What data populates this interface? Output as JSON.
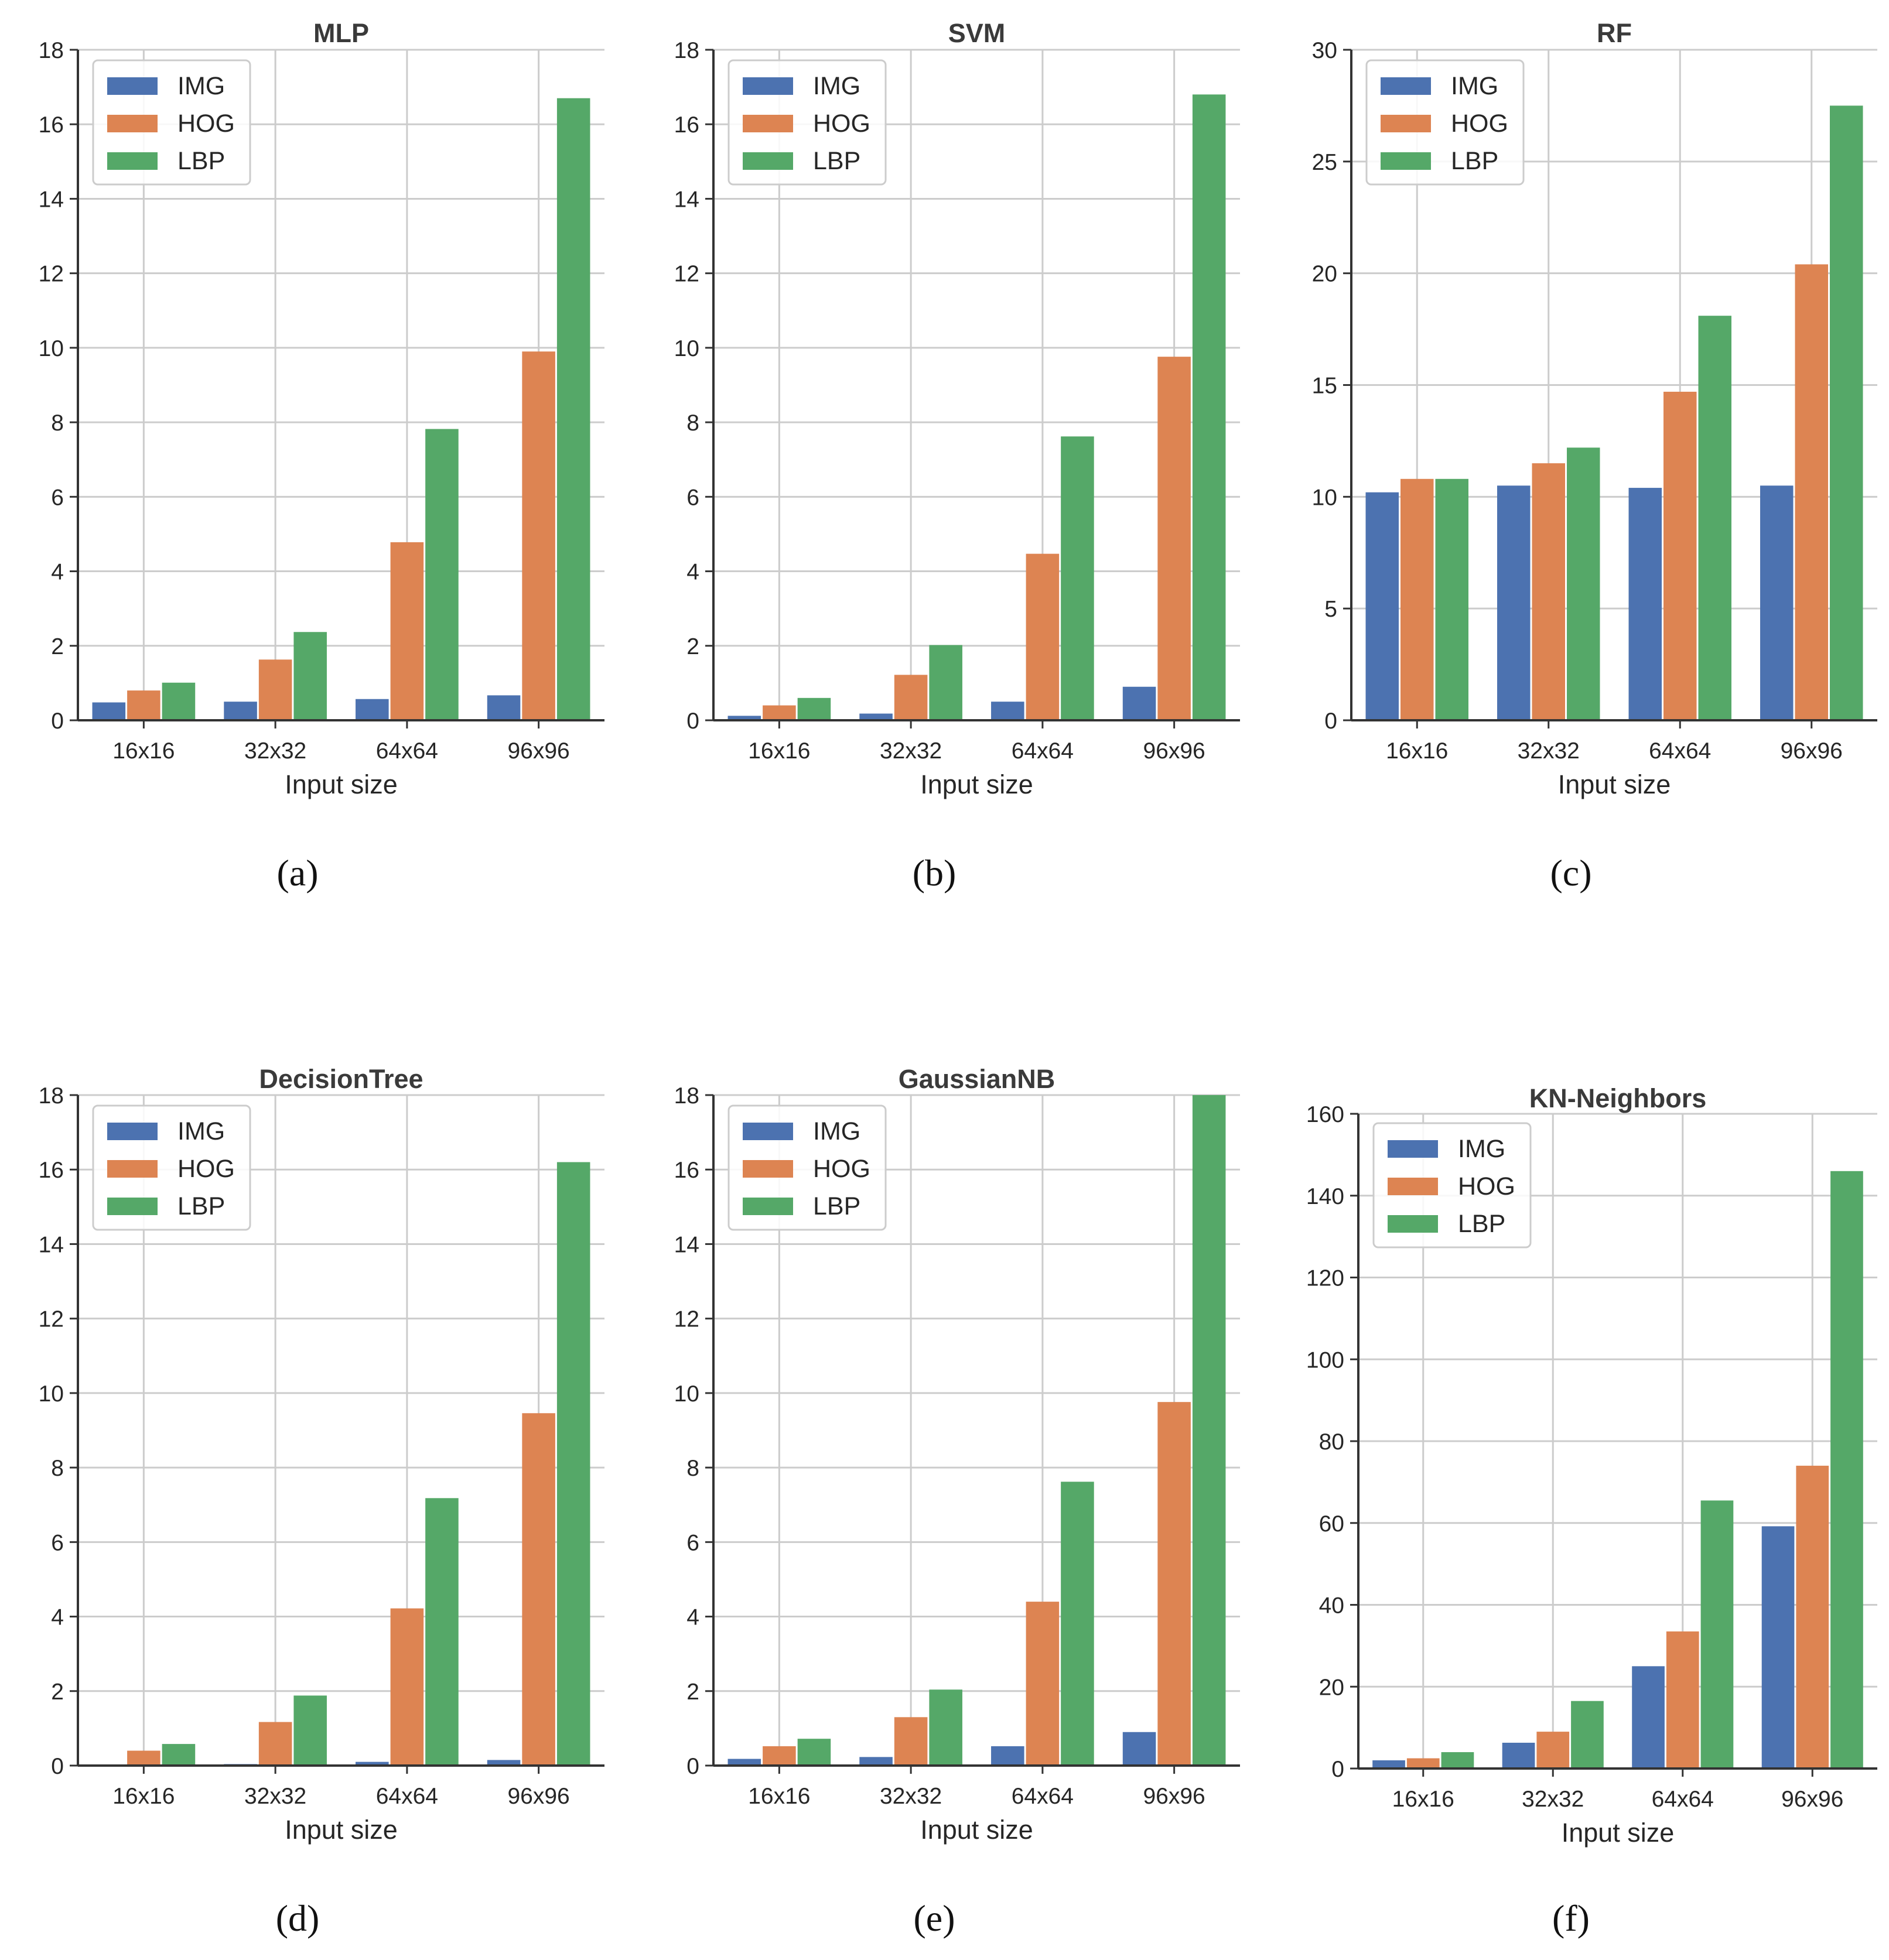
{
  "figure": {
    "colors": {
      "IMG": "#4c72b0",
      "HOG": "#dd8452",
      "LBP": "#55a868",
      "grid": "#cccccc",
      "axis": "#333333"
    }
  },
  "chart_data": [
    {
      "type": "bar",
      "title": "MLP",
      "caption": "(a)",
      "xlabel": "Input size",
      "ylabel": "",
      "categories": [
        "16x16",
        "32x32",
        "64x64",
        "96x96"
      ],
      "ylim": [
        0,
        18
      ],
      "yticks": [
        0,
        2,
        4,
        6,
        8,
        10,
        12,
        14,
        16,
        18
      ],
      "grid": true,
      "legend_position": "top-left",
      "series": [
        {
          "name": "IMG",
          "values": [
            0.48,
            0.5,
            0.57,
            0.67
          ]
        },
        {
          "name": "HOG",
          "values": [
            0.8,
            1.63,
            4.78,
            9.9
          ]
        },
        {
          "name": "LBP",
          "values": [
            1.01,
            2.37,
            7.82,
            16.7
          ]
        }
      ]
    },
    {
      "type": "bar",
      "title": "SVM",
      "caption": "(b)",
      "xlabel": "Input size",
      "ylabel": "",
      "categories": [
        "16x16",
        "32x32",
        "64x64",
        "96x96"
      ],
      "ylim": [
        0,
        18
      ],
      "yticks": [
        0,
        2,
        4,
        6,
        8,
        10,
        12,
        14,
        16,
        18
      ],
      "grid": true,
      "legend_position": "top-left",
      "series": [
        {
          "name": "IMG",
          "values": [
            0.12,
            0.18,
            0.5,
            0.9
          ]
        },
        {
          "name": "HOG",
          "values": [
            0.4,
            1.22,
            4.47,
            9.76
          ]
        },
        {
          "name": "LBP",
          "values": [
            0.6,
            2.02,
            7.62,
            16.8
          ]
        }
      ]
    },
    {
      "type": "bar",
      "title": "RF",
      "caption": "(c)",
      "xlabel": "Input size",
      "ylabel": "",
      "categories": [
        "16x16",
        "32x32",
        "64x64",
        "96x96"
      ],
      "ylim": [
        0,
        30
      ],
      "yticks": [
        0,
        5,
        10,
        15,
        20,
        25,
        30
      ],
      "grid": true,
      "legend_position": "top-left",
      "series": [
        {
          "name": "IMG",
          "values": [
            10.2,
            10.5,
            10.4,
            10.5
          ]
        },
        {
          "name": "HOG",
          "values": [
            10.8,
            11.5,
            14.7,
            20.4
          ]
        },
        {
          "name": "LBP",
          "values": [
            10.8,
            12.2,
            18.1,
            27.5
          ]
        }
      ]
    },
    {
      "type": "bar",
      "title": "DecisionTree",
      "caption": "(d)",
      "xlabel": "Input size",
      "ylabel": "",
      "categories": [
        "16x16",
        "32x32",
        "64x64",
        "96x96"
      ],
      "ylim": [
        0,
        18
      ],
      "yticks": [
        0,
        2,
        4,
        6,
        8,
        10,
        12,
        14,
        16,
        18
      ],
      "grid": true,
      "legend_position": "top-left",
      "series": [
        {
          "name": "IMG",
          "values": [
            0.02,
            0.04,
            0.1,
            0.15
          ]
        },
        {
          "name": "HOG",
          "values": [
            0.4,
            1.17,
            4.22,
            9.46
          ]
        },
        {
          "name": "LBP",
          "values": [
            0.58,
            1.88,
            7.18,
            16.2
          ]
        }
      ]
    },
    {
      "type": "bar",
      "title": "GaussianNB",
      "caption": "(e)",
      "xlabel": "Input size",
      "ylabel": "",
      "categories": [
        "16x16",
        "32x32",
        "64x64",
        "96x96"
      ],
      "ylim": [
        0,
        18
      ],
      "yticks": [
        0,
        2,
        4,
        6,
        8,
        10,
        12,
        14,
        16,
        18
      ],
      "grid": true,
      "legend_position": "top-left",
      "series": [
        {
          "name": "IMG",
          "values": [
            0.18,
            0.23,
            0.52,
            0.9
          ]
        },
        {
          "name": "HOG",
          "values": [
            0.52,
            1.3,
            4.4,
            9.76
          ]
        },
        {
          "name": "LBP",
          "values": [
            0.72,
            2.04,
            7.62,
            18.0
          ]
        }
      ]
    },
    {
      "type": "bar",
      "title": "KN-Neighbors",
      "caption": "(f)",
      "xlabel": "Input size",
      "ylabel": "",
      "categories": [
        "16x16",
        "32x32",
        "64x64",
        "96x96"
      ],
      "ylim": [
        0,
        160
      ],
      "yticks": [
        0,
        20,
        40,
        60,
        80,
        100,
        120,
        140,
        160
      ],
      "grid": true,
      "legend_position": "top-left",
      "series": [
        {
          "name": "IMG",
          "values": [
            2.0,
            6.3,
            25.0,
            59.2
          ]
        },
        {
          "name": "HOG",
          "values": [
            2.5,
            9.0,
            33.5,
            74.0
          ]
        },
        {
          "name": "LBP",
          "values": [
            4.0,
            16.5,
            65.5,
            146.0
          ]
        }
      ]
    }
  ]
}
